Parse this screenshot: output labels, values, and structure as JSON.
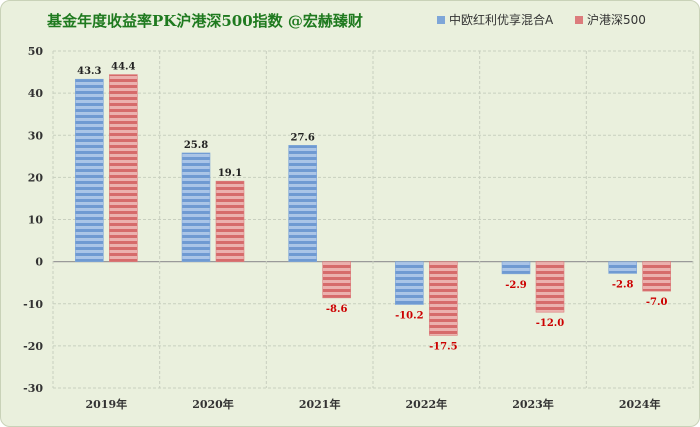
{
  "chart_data": {
    "type": "bar",
    "title": "基金年度收益率PK沪港深500指数   @宏赫臻财",
    "categories": [
      "2019年",
      "2020年",
      "2021年",
      "2022年",
      "2023年",
      "2024年"
    ],
    "series": [
      {
        "name": "中欧红利优享混合A",
        "values": [
          43.3,
          25.8,
          27.6,
          -10.2,
          -2.9,
          -2.8
        ],
        "color": "#7ea6d8"
      },
      {
        "name": "沪港深500",
        "values": [
          44.4,
          19.1,
          -8.6,
          -17.5,
          -12.0,
          -7.0
        ],
        "color": "#dc7c7c"
      }
    ],
    "ylim": [
      -30,
      50
    ],
    "yticks": [
      50,
      40,
      30,
      20,
      10,
      0,
      -10,
      -20,
      -30
    ],
    "ytick_colors": {
      "positive": "#333333",
      "negative": "#c00000"
    },
    "xlabel": "",
    "ylabel": "",
    "grid": true,
    "legend_position": "top-right"
  }
}
